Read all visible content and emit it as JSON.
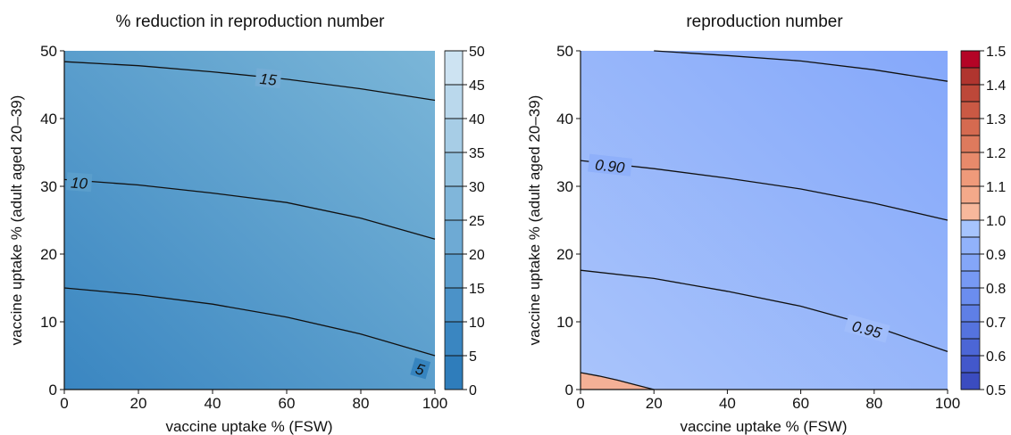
{
  "chart_data": [
    {
      "type": "heatmap",
      "title": "% reduction in reproduction number",
      "xlabel": "vaccine uptake % (FSW)",
      "ylabel": "vaccine uptake % (adult aged 20–39)",
      "xlim": [
        0,
        100
      ],
      "ylim": [
        0,
        50
      ],
      "xticks": [
        "0",
        "20",
        "40",
        "60",
        "80",
        "100"
      ],
      "yticks": [
        "0",
        "10",
        "20",
        "30",
        "40",
        "50"
      ],
      "colormap": "blues",
      "colors": {
        "low": "#3a86c1",
        "high": "#7bb6d8"
      },
      "colorbar": {
        "range": [
          0,
          50
        ],
        "ticks": [
          "0",
          "5",
          "10",
          "15",
          "20",
          "25",
          "30",
          "35",
          "40",
          "45",
          "50"
        ],
        "levels": [
          0,
          5,
          10,
          15,
          20,
          25,
          30,
          35,
          40,
          45,
          50
        ],
        "colors": [
          "#2f7dbb",
          "#3a86c1",
          "#4b92c8",
          "#5c9ece",
          "#6eaad4",
          "#80b6da",
          "#93c2e0",
          "#a7cde6",
          "#bad8ec",
          "#cde3f2"
        ]
      },
      "contours": [
        {
          "level": "5",
          "points": [
            [
              0,
              15
            ],
            [
              20,
              14
            ],
            [
              40,
              12.6
            ],
            [
              60,
              10.7
            ],
            [
              80,
              8.2
            ],
            [
              100,
              5
            ]
          ],
          "label_at": [
            96,
            3
          ]
        },
        {
          "level": "10",
          "points": [
            [
              0,
              31
            ],
            [
              20,
              30.2
            ],
            [
              40,
              29
            ],
            [
              60,
              27.6
            ],
            [
              80,
              25.3
            ],
            [
              100,
              22.2
            ]
          ],
          "label_at": [
            4,
            30.5
          ]
        },
        {
          "level": "15",
          "points": [
            [
              0,
              48.4
            ],
            [
              20,
              47.8
            ],
            [
              40,
              46.9
            ],
            [
              60,
              45.8
            ],
            [
              80,
              44.4
            ],
            [
              100,
              42.7
            ]
          ],
          "label_at": [
            55,
            45.8
          ]
        }
      ]
    },
    {
      "type": "heatmap",
      "title": "reproduction number",
      "xlabel": "vaccine uptake % (FSW)",
      "ylabel": "vaccine uptake % (adult aged 20–39)",
      "xlim": [
        0,
        100
      ],
      "ylim": [
        0,
        50
      ],
      "xticks": [
        "0",
        "20",
        "40",
        "60",
        "80",
        "100"
      ],
      "yticks": [
        "0",
        "10",
        "20",
        "30",
        "40",
        "50"
      ],
      "colormap": "coolwarm",
      "colors": {
        "low": "#a9c4fb",
        "high": "#85a8fa",
        "above_one": "#f4b096"
      },
      "colorbar": {
        "range": [
          0.5,
          1.5
        ],
        "ticks": [
          "0.5",
          "0.6",
          "0.7",
          "0.8",
          "0.9",
          "1.0",
          "1.1",
          "1.2",
          "1.3",
          "1.4",
          "1.5"
        ],
        "levels": [
          0.5,
          0.55,
          0.6,
          0.65,
          0.7,
          0.75,
          0.8,
          0.85,
          0.9,
          0.95,
          1.0,
          1.05,
          1.1,
          1.15,
          1.2,
          1.25,
          1.3,
          1.35,
          1.4,
          1.45,
          1.5
        ],
        "colors": [
          "#3b4cc0",
          "#4358cb",
          "#4c66d6",
          "#5573de",
          "#5f7fe6",
          "#6b8def",
          "#7799f4",
          "#84a6f8",
          "#91b2fb",
          "#a6c4fd",
          "#f7b89c",
          "#f4a98a",
          "#ef9a7a",
          "#e88a6b",
          "#de7a5d",
          "#d56a50",
          "#ca5944",
          "#bd4839",
          "#b0352f",
          "#b40426"
        ]
      },
      "contours": [
        {
          "level": "0.90",
          "points": [
            [
              0,
              33.8
            ],
            [
              20,
              32.6
            ],
            [
              40,
              31.2
            ],
            [
              60,
              29.6
            ],
            [
              80,
              27.5
            ],
            [
              100,
              25
            ]
          ],
          "label_at": [
            8,
            33
          ]
        },
        {
          "level": "0.95",
          "points": [
            [
              0,
              17.6
            ],
            [
              20,
              16.4
            ],
            [
              40,
              14.5
            ],
            [
              60,
              12.3
            ],
            [
              80,
              9.3
            ],
            [
              100,
              5.6
            ]
          ],
          "label_at": [
            78,
            8.9
          ]
        },
        {
          "level": "",
          "points": [
            [
              20,
              50
            ],
            [
              40,
              49.3
            ],
            [
              60,
              48.5
            ],
            [
              80,
              47.2
            ],
            [
              100,
              45.5
            ]
          ]
        },
        {
          "level": "1.0",
          "points": [
            [
              0,
              2.5
            ],
            [
              5,
              2
            ],
            [
              10,
              1.4
            ],
            [
              15,
              0.7
            ],
            [
              20,
              0
            ]
          ]
        }
      ]
    }
  ]
}
